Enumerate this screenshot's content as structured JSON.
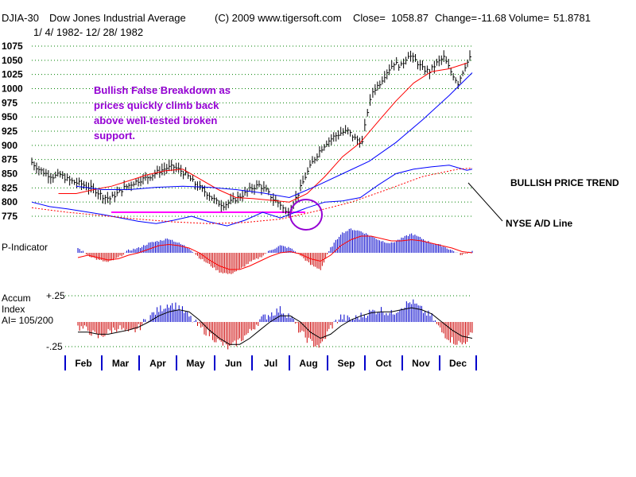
{
  "header": {
    "symbol": "DJIA-30",
    "name": "Dow Jones Industrial Average",
    "copyright": "(C) 2009 www.tigersoft.com",
    "close_label": "Close=",
    "close_value": "1058.87",
    "change_label": "Change=",
    "change_value": "-11.68",
    "volume_label": "Volume=",
    "volume_value": "51.8781",
    "date_range": "1/ 4/ 1982- 12/ 28/ 1982"
  },
  "colors": {
    "price_bars": "#000000",
    "ma_short": "#ff0000",
    "ma_long": "#0000ff",
    "ad_line": "#0000ff",
    "annotation": "#9400d3",
    "support_line": "#ff00ff",
    "grid": "#008000",
    "positive": "#0000cc",
    "negative": "#cc0000"
  },
  "annotation": {
    "lines": [
      "Bullish False Breakdown as",
      "prices quickly climb back",
      "above well-tested broken",
      "support."
    ]
  },
  "labels": {
    "trend": "BULLISH PRICE TREND",
    "ad_line": "NYSE A/D Line",
    "p_indicator": "P-Indicator",
    "accum_line1": "Accum",
    "accum_line2": "Index",
    "accum_line3": "AI= 105/200",
    "accum_top": "+.25",
    "accum_bottom": "-.25"
  },
  "chart_data": {
    "type": "line",
    "title": "DJIA-30 Dow Jones Industrial Average 1982",
    "ylim": [
      775,
      1085
    ],
    "yticks": [
      1075,
      1050,
      1025,
      1000,
      975,
      950,
      925,
      900,
      875,
      850,
      825,
      800,
      775
    ],
    "months": [
      "Feb",
      "Mar",
      "Apr",
      "May",
      "Jun",
      "Jul",
      "Aug",
      "Sep",
      "Oct",
      "Nov",
      "Dec"
    ],
    "support_level": 785,
    "price": [
      [
        0,
        870
      ],
      [
        4,
        858
      ],
      [
        8,
        850
      ],
      [
        12,
        845
      ],
      [
        16,
        848
      ],
      [
        20,
        840
      ],
      [
        24,
        835
      ],
      [
        28,
        832
      ],
      [
        32,
        826
      ],
      [
        36,
        820
      ],
      [
        40,
        810
      ],
      [
        44,
        806
      ],
      [
        48,
        815
      ],
      [
        52,
        825
      ],
      [
        56,
        832
      ],
      [
        60,
        838
      ],
      [
        64,
        842
      ],
      [
        68,
        848
      ],
      [
        72,
        855
      ],
      [
        76,
        860
      ],
      [
        80,
        862
      ],
      [
        84,
        855
      ],
      [
        88,
        845
      ],
      [
        92,
        832
      ],
      [
        96,
        822
      ],
      [
        100,
        812
      ],
      [
        104,
        800
      ],
      [
        108,
        795
      ],
      [
        112,
        800
      ],
      [
        116,
        808
      ],
      [
        120,
        815
      ],
      [
        124,
        825
      ],
      [
        128,
        830
      ],
      [
        132,
        820
      ],
      [
        136,
        805
      ],
      [
        140,
        796
      ],
      [
        143,
        782
      ],
      [
        146,
        790
      ],
      [
        150,
        815
      ],
      [
        154,
        845
      ],
      [
        158,
        870
      ],
      [
        162,
        890
      ],
      [
        166,
        905
      ],
      [
        170,
        915
      ],
      [
        174,
        922
      ],
      [
        178,
        925
      ],
      [
        182,
        912
      ],
      [
        186,
        905
      ],
      [
        189,
        960
      ],
      [
        192,
        995
      ],
      [
        196,
        1010
      ],
      [
        200,
        1030
      ],
      [
        204,
        1045
      ],
      [
        208,
        1040
      ],
      [
        212,
        1060
      ],
      [
        216,
        1050
      ],
      [
        220,
        1035
      ],
      [
        224,
        1030
      ],
      [
        228,
        1045
      ],
      [
        232,
        1055
      ],
      [
        236,
        1030
      ],
      [
        240,
        1010
      ],
      [
        244,
        1040
      ],
      [
        248,
        1060
      ]
    ],
    "ma_short": [
      [
        15,
        815
      ],
      [
        25,
        815
      ],
      [
        35,
        822
      ],
      [
        45,
        828
      ],
      [
        55,
        838
      ],
      [
        65,
        848
      ],
      [
        75,
        855
      ],
      [
        85,
        858
      ],
      [
        95,
        840
      ],
      [
        105,
        822
      ],
      [
        115,
        808
      ],
      [
        125,
        806
      ],
      [
        135,
        803
      ],
      [
        145,
        800
      ],
      [
        155,
        815
      ],
      [
        165,
        845
      ],
      [
        175,
        880
      ],
      [
        185,
        905
      ],
      [
        195,
        942
      ],
      [
        205,
        978
      ],
      [
        215,
        1010
      ],
      [
        225,
        1030
      ],
      [
        235,
        1035
      ],
      [
        245,
        1045
      ]
    ],
    "ma_long": [
      [
        25,
        828
      ],
      [
        40,
        822
      ],
      [
        55,
        822
      ],
      [
        70,
        826
      ],
      [
        85,
        828
      ],
      [
        100,
        826
      ],
      [
        115,
        822
      ],
      [
        130,
        816
      ],
      [
        145,
        808
      ],
      [
        160,
        828
      ],
      [
        175,
        850
      ],
      [
        190,
        872
      ],
      [
        205,
        905
      ],
      [
        220,
        945
      ],
      [
        235,
        988
      ],
      [
        248,
        1028
      ]
    ],
    "ad_line": [
      [
        0,
        800
      ],
      [
        10,
        792
      ],
      [
        20,
        788
      ],
      [
        30,
        783
      ],
      [
        40,
        778
      ],
      [
        50,
        772
      ],
      [
        60,
        766
      ],
      [
        70,
        762
      ],
      [
        80,
        768
      ],
      [
        90,
        775
      ],
      [
        100,
        765
      ],
      [
        110,
        758
      ],
      [
        120,
        768
      ],
      [
        130,
        782
      ],
      [
        140,
        772
      ],
      [
        145,
        778
      ],
      [
        155,
        790
      ],
      [
        165,
        800
      ],
      [
        175,
        802
      ],
      [
        185,
        808
      ],
      [
        195,
        830
      ],
      [
        205,
        850
      ],
      [
        215,
        858
      ],
      [
        225,
        862
      ],
      [
        235,
        865
      ],
      [
        245,
        856
      ],
      [
        248,
        858
      ]
    ],
    "ad_ma": [
      [
        0,
        790
      ],
      [
        20,
        782
      ],
      [
        40,
        776
      ],
      [
        60,
        770
      ],
      [
        80,
        765
      ],
      [
        100,
        762
      ],
      [
        120,
        764
      ],
      [
        140,
        770
      ],
      [
        160,
        784
      ],
      [
        180,
        800
      ],
      [
        200,
        822
      ],
      [
        220,
        845
      ],
      [
        240,
        858
      ],
      [
        248,
        860
      ]
    ],
    "p_indicator": [
      0.2,
      -0.1,
      -0.3,
      -0.4,
      -0.2,
      0.1,
      0.2,
      0.4,
      0.5,
      0.6,
      0.4,
      0.2,
      -0.2,
      -0.5,
      -0.8,
      -0.9,
      -0.7,
      -0.4,
      -0.2,
      0.1,
      0.3,
      0.2,
      -0.1,
      -0.5,
      -0.7,
      0.2,
      0.8,
      1.0,
      0.9,
      0.7,
      0.5,
      0.4,
      0.6,
      0.8,
      0.6,
      0.4,
      0.3,
      0.1,
      -0.1,
      0.1
    ],
    "p_ma": [
      -0.2,
      -0.1,
      -0.2,
      -0.3,
      -0.25,
      -0.1,
      0.0,
      0.15,
      0.3,
      0.35,
      0.3,
      0.2,
      0.0,
      -0.3,
      -0.55,
      -0.7,
      -0.7,
      -0.55,
      -0.35,
      -0.15,
      0.0,
      0.05,
      -0.05,
      -0.25,
      -0.35,
      -0.1,
      0.3,
      0.55,
      0.7,
      0.7,
      0.6,
      0.5,
      0.5,
      0.55,
      0.5,
      0.4,
      0.3,
      0.2,
      0.05,
      0.0
    ],
    "accum_index": [
      -0.05,
      -0.08,
      -0.15,
      -0.1,
      -0.05,
      -0.12,
      -0.06,
      0.05,
      0.12,
      0.18,
      0.15,
      0.05,
      -0.05,
      -0.12,
      -0.2,
      -0.26,
      -0.18,
      -0.1,
      0.02,
      0.08,
      0.12,
      0.06,
      -0.1,
      -0.2,
      -0.24,
      -0.05,
      0.05,
      0.02,
      0.06,
      0.1,
      0.12,
      0.08,
      0.15,
      0.2,
      0.12,
      0.05,
      -0.1,
      -0.18,
      -0.22,
      -0.12
    ],
    "accum_ma": [
      -0.1,
      -0.1,
      -0.12,
      -0.12,
      -0.1,
      -0.08,
      -0.05,
      0.0,
      0.06,
      0.1,
      0.12,
      0.1,
      0.02,
      -0.08,
      -0.16,
      -0.22,
      -0.22,
      -0.16,
      -0.08,
      0.0,
      0.06,
      0.06,
      0.0,
      -0.1,
      -0.16,
      -0.12,
      -0.04,
      0.02,
      0.06,
      0.09,
      0.1,
      0.1,
      0.12,
      0.14,
      0.12,
      0.08,
      0.0,
      -0.08,
      -0.14,
      -0.16
    ]
  }
}
